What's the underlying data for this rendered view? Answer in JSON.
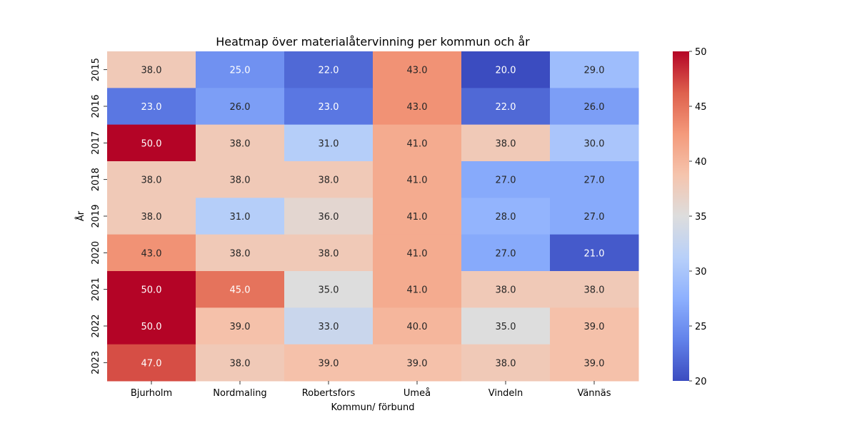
{
  "chart_data": {
    "type": "heatmap",
    "title": "Heatmap över materialåtervinning per kommun och år",
    "xlabel": "Kommun/ förbund",
    "ylabel": "År",
    "x_categories": [
      "Bjurholm",
      "Nordmaling",
      "Robertsfors",
      "Umeå",
      "Vindeln",
      "Vännäs"
    ],
    "y_categories": [
      "2015",
      "2016",
      "2017",
      "2018",
      "2019",
      "2020",
      "2021",
      "2022",
      "2023"
    ],
    "values": [
      [
        38.0,
        25.0,
        22.0,
        43.0,
        20.0,
        29.0
      ],
      [
        23.0,
        26.0,
        23.0,
        43.0,
        22.0,
        26.0
      ],
      [
        50.0,
        38.0,
        31.0,
        41.0,
        38.0,
        30.0
      ],
      [
        38.0,
        38.0,
        38.0,
        41.0,
        27.0,
        27.0
      ],
      [
        38.0,
        31.0,
        36.0,
        41.0,
        28.0,
        27.0
      ],
      [
        43.0,
        38.0,
        38.0,
        41.0,
        27.0,
        21.0
      ],
      [
        50.0,
        45.0,
        35.0,
        41.0,
        38.0,
        38.0
      ],
      [
        50.0,
        39.0,
        33.0,
        40.0,
        35.0,
        39.0
      ],
      [
        47.0,
        38.0,
        39.0,
        39.0,
        38.0,
        39.0
      ]
    ],
    "value_format": "0.0",
    "colormap": "coolwarm",
    "vmin": 20,
    "vmax": 50,
    "colorbar_ticks": [
      20,
      25,
      30,
      35,
      40,
      45,
      50
    ],
    "annotated": true,
    "grid": false,
    "legend": "colorbar-right"
  }
}
